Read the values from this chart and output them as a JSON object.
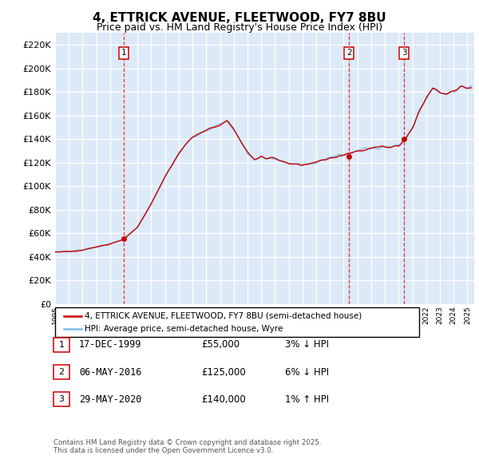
{
  "title": "4, ETTRICK AVENUE, FLEETWOOD, FY7 8BU",
  "subtitle": "Price paid vs. HM Land Registry's House Price Index (HPI)",
  "legend_line1": "4, ETTRICK AVENUE, FLEETWOOD, FY7 8BU (semi-detached house)",
  "legend_line2": "HPI: Average price, semi-detached house, Wyre",
  "footer": "Contains HM Land Registry data © Crown copyright and database right 2025.\nThis data is licensed under the Open Government Licence v3.0.",
  "transactions": [
    {
      "num": 1,
      "date": "17-DEC-1999",
      "price": "£55,000",
      "pct": "3% ↓ HPI",
      "year_x": 2000.0,
      "price_val": 55000
    },
    {
      "num": 2,
      "date": "06-MAY-2016",
      "price": "£125,000",
      "pct": "6% ↓ HPI",
      "year_x": 2016.4,
      "price_val": 125000
    },
    {
      "num": 3,
      "date": "29-MAY-2020",
      "price": "£140,000",
      "pct": "1% ↑ HPI",
      "year_x": 2020.4,
      "price_val": 140000
    }
  ],
  "hpi_color": "#7bbde8",
  "price_color": "#cc0000",
  "plot_bg": "#dce9f7",
  "ylim": [
    0,
    230000
  ],
  "yticks": [
    0,
    20000,
    40000,
    60000,
    80000,
    100000,
    120000,
    140000,
    160000,
    180000,
    200000,
    220000
  ],
  "xlim_start": 1995,
  "xlim_end": 2025.5
}
